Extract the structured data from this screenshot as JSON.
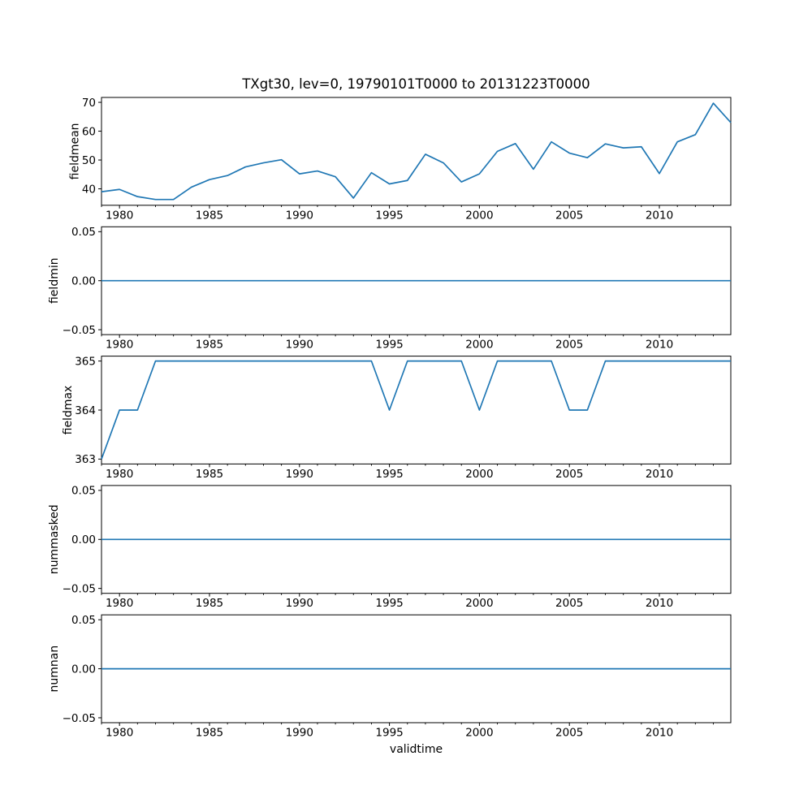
{
  "figure": {
    "title": "TXgt30, lev=0, 19790101T0000 to 20131223T0000",
    "xlabel": "validtime",
    "line_color": "#1f77b4",
    "axis_color": "#000000",
    "background": "#ffffff"
  },
  "chart_data": [
    {
      "type": "line",
      "ylabel": "fieldmean",
      "x": [
        1979,
        1980,
        1981,
        1982,
        1983,
        1984,
        1985,
        1986,
        1987,
        1988,
        1989,
        1990,
        1991,
        1992,
        1993,
        1994,
        1995,
        1996,
        1997,
        1998,
        1999,
        2000,
        2001,
        2002,
        2003,
        2004,
        2005,
        2006,
        2007,
        2008,
        2009,
        2010,
        2011,
        2012,
        2013,
        2013.97
      ],
      "values": [
        39.0,
        39.8,
        37.3,
        36.3,
        36.3,
        40.6,
        43.2,
        44.6,
        47.6,
        49.0,
        50.1,
        45.2,
        46.2,
        44.2,
        36.8,
        45.6,
        41.7,
        42.9,
        52.0,
        49.0,
        42.4,
        45.2,
        53.0,
        55.7,
        46.8,
        56.3,
        52.4,
        50.8,
        55.6,
        54.2,
        54.6,
        45.3,
        56.3,
        58.8,
        69.7,
        63.0
      ],
      "xlim": [
        1979,
        2013.97
      ],
      "ylim": [
        34.3,
        71.7
      ],
      "xticks": [
        1980,
        1985,
        1990,
        1995,
        2000,
        2005,
        2010
      ],
      "xtick_labels": [
        "1980",
        "1985",
        "1990",
        "1995",
        "2000",
        "2005",
        "2010"
      ],
      "x_minor_step": 1,
      "yticks": [
        40,
        50,
        60,
        70
      ],
      "ytick_labels": [
        "40",
        "50",
        "60",
        "70"
      ],
      "grid": false
    },
    {
      "type": "line",
      "ylabel": "fieldmin",
      "x": [
        1979,
        1980,
        1981,
        1982,
        1983,
        1984,
        1985,
        1986,
        1987,
        1988,
        1989,
        1990,
        1991,
        1992,
        1993,
        1994,
        1995,
        1996,
        1997,
        1998,
        1999,
        2000,
        2001,
        2002,
        2003,
        2004,
        2005,
        2006,
        2007,
        2008,
        2009,
        2010,
        2011,
        2012,
        2013,
        2013.97
      ],
      "values": [
        0,
        0,
        0,
        0,
        0,
        0,
        0,
        0,
        0,
        0,
        0,
        0,
        0,
        0,
        0,
        0,
        0,
        0,
        0,
        0,
        0,
        0,
        0,
        0,
        0,
        0,
        0,
        0,
        0,
        0,
        0,
        0,
        0,
        0,
        0,
        0
      ],
      "xlim": [
        1979,
        2013.97
      ],
      "ylim": [
        -0.055,
        0.055
      ],
      "xticks": [
        1980,
        1985,
        1990,
        1995,
        2000,
        2005,
        2010
      ],
      "xtick_labels": [
        "1980",
        "1985",
        "1990",
        "1995",
        "2000",
        "2005",
        "2010"
      ],
      "x_minor_step": 1,
      "yticks": [
        -0.05,
        0,
        0.05
      ],
      "ytick_labels": [
        "−0.05",
        "0.00",
        "0.05"
      ],
      "grid": false
    },
    {
      "type": "line",
      "ylabel": "fieldmax",
      "x": [
        1979,
        1980,
        1981,
        1982,
        1983,
        1984,
        1985,
        1986,
        1987,
        1988,
        1989,
        1990,
        1991,
        1992,
        1993,
        1994,
        1995,
        1996,
        1997,
        1998,
        1999,
        2000,
        2001,
        2002,
        2003,
        2004,
        2005,
        2006,
        2007,
        2008,
        2009,
        2010,
        2011,
        2012,
        2013,
        2013.97
      ],
      "values": [
        363,
        364,
        364,
        365,
        365,
        365,
        365,
        365,
        365,
        365,
        365,
        365,
        365,
        365,
        365,
        365,
        364,
        365,
        365,
        365,
        365,
        364,
        365,
        365,
        365,
        365,
        364,
        364,
        365,
        365,
        365,
        365,
        365,
        365,
        365,
        365
      ],
      "xlim": [
        1979,
        2013.97
      ],
      "ylim": [
        362.9,
        365.1
      ],
      "xticks": [
        1980,
        1985,
        1990,
        1995,
        2000,
        2005,
        2010
      ],
      "xtick_labels": [
        "1980",
        "1985",
        "1990",
        "1995",
        "2000",
        "2005",
        "2010"
      ],
      "x_minor_step": 1,
      "yticks": [
        363,
        364,
        365
      ],
      "ytick_labels": [
        "363",
        "364",
        "365"
      ],
      "grid": false
    },
    {
      "type": "line",
      "ylabel": "nummasked",
      "x": [
        1979,
        1980,
        1981,
        1982,
        1983,
        1984,
        1985,
        1986,
        1987,
        1988,
        1989,
        1990,
        1991,
        1992,
        1993,
        1994,
        1995,
        1996,
        1997,
        1998,
        1999,
        2000,
        2001,
        2002,
        2003,
        2004,
        2005,
        2006,
        2007,
        2008,
        2009,
        2010,
        2011,
        2012,
        2013,
        2013.97
      ],
      "values": [
        0,
        0,
        0,
        0,
        0,
        0,
        0,
        0,
        0,
        0,
        0,
        0,
        0,
        0,
        0,
        0,
        0,
        0,
        0,
        0,
        0,
        0,
        0,
        0,
        0,
        0,
        0,
        0,
        0,
        0,
        0,
        0,
        0,
        0,
        0,
        0
      ],
      "xlim": [
        1979,
        2013.97
      ],
      "ylim": [
        -0.055,
        0.055
      ],
      "xticks": [
        1980,
        1985,
        1990,
        1995,
        2000,
        2005,
        2010
      ],
      "xtick_labels": [
        "1980",
        "1985",
        "1990",
        "1995",
        "2000",
        "2005",
        "2010"
      ],
      "x_minor_step": 1,
      "yticks": [
        -0.05,
        0,
        0.05
      ],
      "ytick_labels": [
        "−0.05",
        "0.00",
        "0.05"
      ],
      "grid": false
    },
    {
      "type": "line",
      "ylabel": "numnan",
      "x": [
        1979,
        1980,
        1981,
        1982,
        1983,
        1984,
        1985,
        1986,
        1987,
        1988,
        1989,
        1990,
        1991,
        1992,
        1993,
        1994,
        1995,
        1996,
        1997,
        1998,
        1999,
        2000,
        2001,
        2002,
        2003,
        2004,
        2005,
        2006,
        2007,
        2008,
        2009,
        2010,
        2011,
        2012,
        2013,
        2013.97
      ],
      "values": [
        0,
        0,
        0,
        0,
        0,
        0,
        0,
        0,
        0,
        0,
        0,
        0,
        0,
        0,
        0,
        0,
        0,
        0,
        0,
        0,
        0,
        0,
        0,
        0,
        0,
        0,
        0,
        0,
        0,
        0,
        0,
        0,
        0,
        0,
        0,
        0
      ],
      "xlim": [
        1979,
        2013.97
      ],
      "ylim": [
        -0.055,
        0.055
      ],
      "xticks": [
        1980,
        1985,
        1990,
        1995,
        2000,
        2005,
        2010
      ],
      "xtick_labels": [
        "1980",
        "1985",
        "1990",
        "1995",
        "2000",
        "2005",
        "2010"
      ],
      "x_minor_step": 1,
      "yticks": [
        -0.05,
        0,
        0.05
      ],
      "ytick_labels": [
        "−0.05",
        "0.00",
        "0.05"
      ],
      "grid": false
    }
  ]
}
